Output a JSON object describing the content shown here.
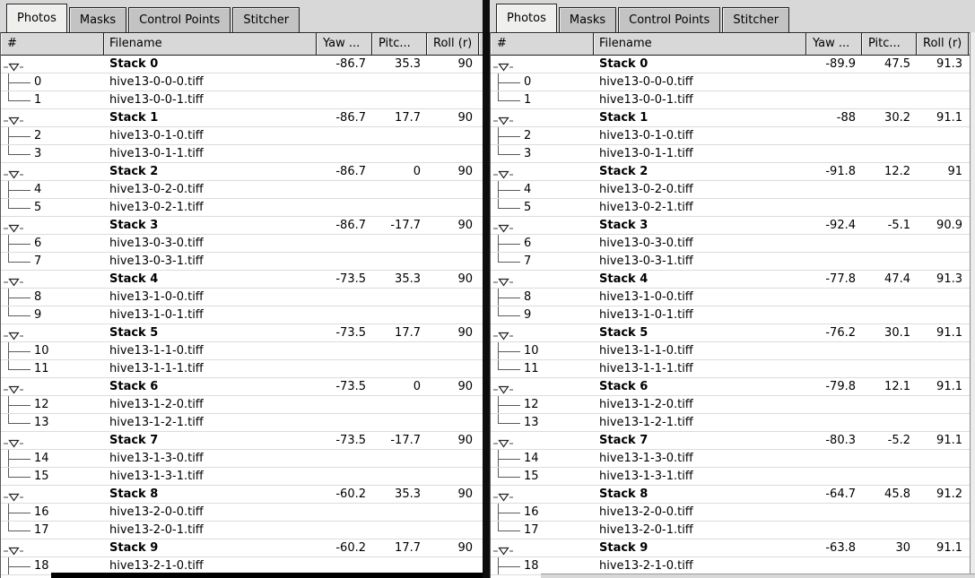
{
  "tabs": [
    {
      "label": "Photos",
      "active": true
    },
    {
      "label": "Masks",
      "active": false
    },
    {
      "label": "Control Points",
      "active": false
    },
    {
      "label": "Stitcher",
      "active": false
    }
  ],
  "columns": [
    "#",
    "Filename",
    "Yaw ...",
    "Pitc...",
    "Roll (r)"
  ],
  "colors": {
    "panel_bg": "#d8d8d8",
    "divider": "#0d0d0d",
    "row_line": "#dcdcdc"
  },
  "panels": [
    {
      "id": "left",
      "rows": [
        {
          "t": "stack",
          "label": "Stack 0",
          "yaw": "-86.7",
          "pitch": "35.3",
          "roll": "90"
        },
        {
          "t": "image",
          "num": "0",
          "file": "hive13-0-0-0.tiff",
          "last": false
        },
        {
          "t": "image",
          "num": "1",
          "file": "hive13-0-0-1.tiff",
          "last": true
        },
        {
          "t": "stack",
          "label": "Stack 1",
          "yaw": "-86.7",
          "pitch": "17.7",
          "roll": "90"
        },
        {
          "t": "image",
          "num": "2",
          "file": "hive13-0-1-0.tiff",
          "last": false
        },
        {
          "t": "image",
          "num": "3",
          "file": "hive13-0-1-1.tiff",
          "last": true
        },
        {
          "t": "stack",
          "label": "Stack 2",
          "yaw": "-86.7",
          "pitch": "0",
          "roll": "90"
        },
        {
          "t": "image",
          "num": "4",
          "file": "hive13-0-2-0.tiff",
          "last": false
        },
        {
          "t": "image",
          "num": "5",
          "file": "hive13-0-2-1.tiff",
          "last": true
        },
        {
          "t": "stack",
          "label": "Stack 3",
          "yaw": "-86.7",
          "pitch": "-17.7",
          "roll": "90"
        },
        {
          "t": "image",
          "num": "6",
          "file": "hive13-0-3-0.tiff",
          "last": false
        },
        {
          "t": "image",
          "num": "7",
          "file": "hive13-0-3-1.tiff",
          "last": true
        },
        {
          "t": "stack",
          "label": "Stack 4",
          "yaw": "-73.5",
          "pitch": "35.3",
          "roll": "90"
        },
        {
          "t": "image",
          "num": "8",
          "file": "hive13-1-0-0.tiff",
          "last": false
        },
        {
          "t": "image",
          "num": "9",
          "file": "hive13-1-0-1.tiff",
          "last": true
        },
        {
          "t": "stack",
          "label": "Stack 5",
          "yaw": "-73.5",
          "pitch": "17.7",
          "roll": "90"
        },
        {
          "t": "image",
          "num": "10",
          "file": "hive13-1-1-0.tiff",
          "last": false
        },
        {
          "t": "image",
          "num": "11",
          "file": "hive13-1-1-1.tiff",
          "last": true
        },
        {
          "t": "stack",
          "label": "Stack 6",
          "yaw": "-73.5",
          "pitch": "0",
          "roll": "90"
        },
        {
          "t": "image",
          "num": "12",
          "file": "hive13-1-2-0.tiff",
          "last": false
        },
        {
          "t": "image",
          "num": "13",
          "file": "hive13-1-2-1.tiff",
          "last": true
        },
        {
          "t": "stack",
          "label": "Stack 7",
          "yaw": "-73.5",
          "pitch": "-17.7",
          "roll": "90"
        },
        {
          "t": "image",
          "num": "14",
          "file": "hive13-1-3-0.tiff",
          "last": false
        },
        {
          "t": "image",
          "num": "15",
          "file": "hive13-1-3-1.tiff",
          "last": true
        },
        {
          "t": "stack",
          "label": "Stack 8",
          "yaw": "-60.2",
          "pitch": "35.3",
          "roll": "90"
        },
        {
          "t": "image",
          "num": "16",
          "file": "hive13-2-0-0.tiff",
          "last": false
        },
        {
          "t": "image",
          "num": "17",
          "file": "hive13-2-0-1.tiff",
          "last": true
        },
        {
          "t": "stack",
          "label": "Stack 9",
          "yaw": "-60.2",
          "pitch": "17.7",
          "roll": "90"
        },
        {
          "t": "image",
          "num": "18",
          "file": "hive13-2-1-0.tiff",
          "last": false
        }
      ]
    },
    {
      "id": "right",
      "rows": [
        {
          "t": "stack",
          "label": "Stack 0",
          "yaw": "-89.9",
          "pitch": "47.5",
          "roll": "91.3"
        },
        {
          "t": "image",
          "num": "0",
          "file": "hive13-0-0-0.tiff",
          "last": false
        },
        {
          "t": "image",
          "num": "1",
          "file": "hive13-0-0-1.tiff",
          "last": true
        },
        {
          "t": "stack",
          "label": "Stack 1",
          "yaw": "-88",
          "pitch": "30.2",
          "roll": "91.1"
        },
        {
          "t": "image",
          "num": "2",
          "file": "hive13-0-1-0.tiff",
          "last": false
        },
        {
          "t": "image",
          "num": "3",
          "file": "hive13-0-1-1.tiff",
          "last": true
        },
        {
          "t": "stack",
          "label": "Stack 2",
          "yaw": "-91.8",
          "pitch": "12.2",
          "roll": "91"
        },
        {
          "t": "image",
          "num": "4",
          "file": "hive13-0-2-0.tiff",
          "last": false
        },
        {
          "t": "image",
          "num": "5",
          "file": "hive13-0-2-1.tiff",
          "last": true
        },
        {
          "t": "stack",
          "label": "Stack 3",
          "yaw": "-92.4",
          "pitch": "-5.1",
          "roll": "90.9"
        },
        {
          "t": "image",
          "num": "6",
          "file": "hive13-0-3-0.tiff",
          "last": false
        },
        {
          "t": "image",
          "num": "7",
          "file": "hive13-0-3-1.tiff",
          "last": true
        },
        {
          "t": "stack",
          "label": "Stack 4",
          "yaw": "-77.8",
          "pitch": "47.4",
          "roll": "91.3"
        },
        {
          "t": "image",
          "num": "8",
          "file": "hive13-1-0-0.tiff",
          "last": false
        },
        {
          "t": "image",
          "num": "9",
          "file": "hive13-1-0-1.tiff",
          "last": true
        },
        {
          "t": "stack",
          "label": "Stack 5",
          "yaw": "-76.2",
          "pitch": "30.1",
          "roll": "91.1"
        },
        {
          "t": "image",
          "num": "10",
          "file": "hive13-1-1-0.tiff",
          "last": false
        },
        {
          "t": "image",
          "num": "11",
          "file": "hive13-1-1-1.tiff",
          "last": true
        },
        {
          "t": "stack",
          "label": "Stack 6",
          "yaw": "-79.8",
          "pitch": "12.1",
          "roll": "91.1"
        },
        {
          "t": "image",
          "num": "12",
          "file": "hive13-1-2-0.tiff",
          "last": false
        },
        {
          "t": "image",
          "num": "13",
          "file": "hive13-1-2-1.tiff",
          "last": true
        },
        {
          "t": "stack",
          "label": "Stack 7",
          "yaw": "-80.3",
          "pitch": "-5.2",
          "roll": "91.1"
        },
        {
          "t": "image",
          "num": "14",
          "file": "hive13-1-3-0.tiff",
          "last": false
        },
        {
          "t": "image",
          "num": "15",
          "file": "hive13-1-3-1.tiff",
          "last": true
        },
        {
          "t": "stack",
          "label": "Stack 8",
          "yaw": "-64.7",
          "pitch": "45.8",
          "roll": "91.2"
        },
        {
          "t": "image",
          "num": "16",
          "file": "hive13-2-0-0.tiff",
          "last": false
        },
        {
          "t": "image",
          "num": "17",
          "file": "hive13-2-0-1.tiff",
          "last": true
        },
        {
          "t": "stack",
          "label": "Stack 9",
          "yaw": "-63.8",
          "pitch": "30",
          "roll": "91.1"
        },
        {
          "t": "image",
          "num": "18",
          "file": "hive13-2-1-0.tiff",
          "last": false
        }
      ]
    }
  ]
}
